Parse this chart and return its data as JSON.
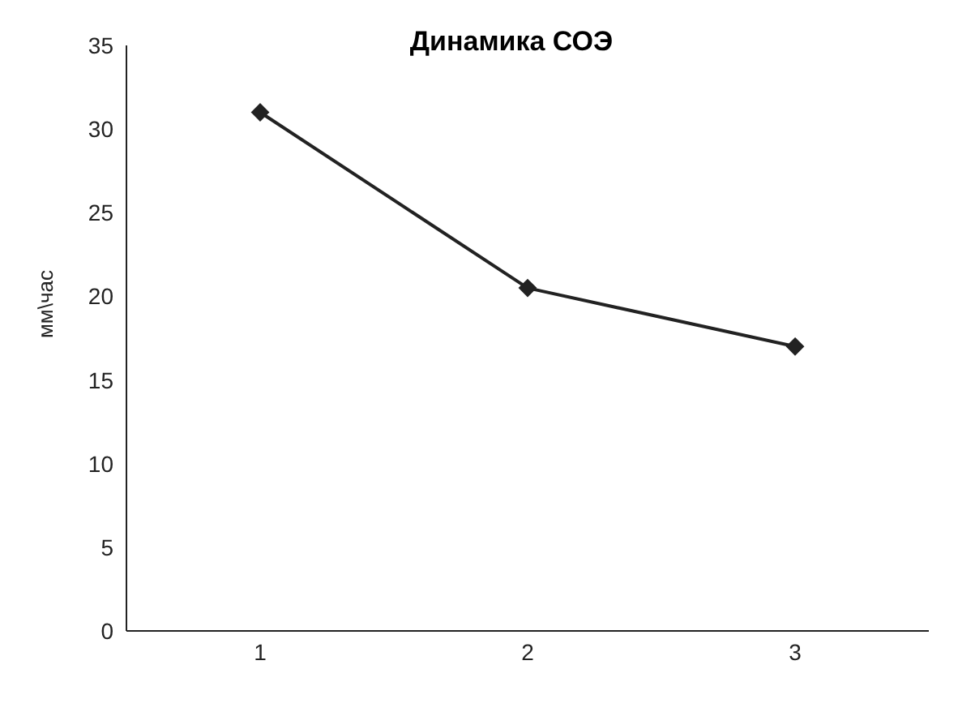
{
  "chart_data": {
    "type": "line",
    "title": "Динамика СОЭ",
    "ylabel": "мм\\час",
    "categories": [
      "1",
      "2",
      "3"
    ],
    "series": [
      {
        "color": "#222222",
        "values": [
          31,
          20.5,
          17
        ]
      }
    ],
    "ylim": [
      0,
      35
    ],
    "yticks": [
      0,
      5,
      10,
      15,
      20,
      25,
      30,
      35
    ],
    "grid": false,
    "legend": false,
    "marker": "diamond",
    "line_style": "solid"
  }
}
